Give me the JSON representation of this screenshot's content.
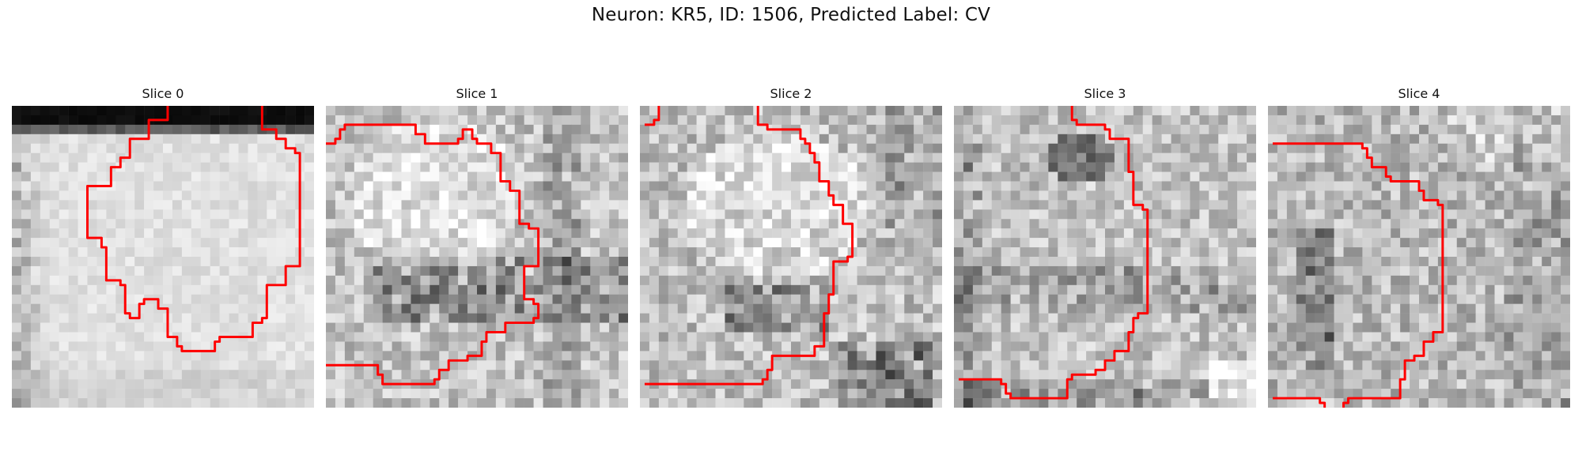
{
  "figure": {
    "title": "Neuron: KR5, ID: 1506, Predicted Label: CV",
    "contour_color": "#ff0000"
  },
  "panels": [
    {
      "title": "Slice 0"
    },
    {
      "title": "Slice 1"
    },
    {
      "title": "Slice 2"
    },
    {
      "title": "Slice 3"
    },
    {
      "title": "Slice 4"
    }
  ]
}
